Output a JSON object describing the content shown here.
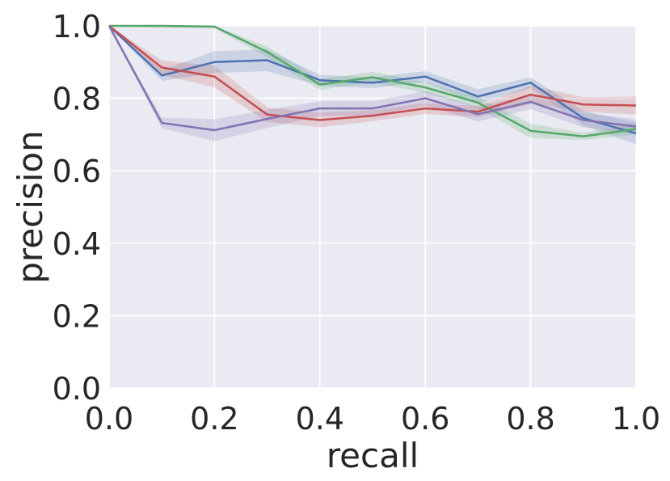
{
  "chart_data": {
    "type": "line",
    "xlabel": "recall",
    "ylabel": "precision",
    "xlim": [
      0.0,
      1.0
    ],
    "ylim": [
      0.0,
      1.0
    ],
    "x_ticks": [
      "0.0",
      "0.2",
      "0.4",
      "0.6",
      "0.8",
      "1.0"
    ],
    "y_ticks": [
      "0.0",
      "0.2",
      "0.4",
      "0.6",
      "0.8",
      "1.0"
    ],
    "grid": true,
    "background_color": "#EAEAF2",
    "x": [
      0.0,
      0.1,
      0.2,
      0.3,
      0.4,
      0.5,
      0.6,
      0.7,
      0.8,
      0.9,
      1.0
    ],
    "series": [
      {
        "color": "#4C72B0",
        "values": [
          1.0,
          0.863,
          0.9,
          0.905,
          0.85,
          0.843,
          0.86,
          0.805,
          0.843,
          0.745,
          0.703
        ],
        "band": [
          0.0,
          0.015,
          0.03,
          0.03,
          0.015,
          0.015,
          0.015,
          0.02,
          0.015,
          0.02,
          0.03
        ]
      },
      {
        "color": "#55A868",
        "values": [
          1.0,
          1.0,
          0.998,
          0.928,
          0.838,
          0.858,
          0.83,
          0.788,
          0.71,
          0.695,
          0.715
        ],
        "band": [
          0.0,
          0.005,
          0.005,
          0.015,
          0.015,
          0.015,
          0.015,
          0.015,
          0.02,
          0.01,
          0.015
        ]
      },
      {
        "color": "#C44E52",
        "values": [
          1.0,
          0.885,
          0.86,
          0.755,
          0.74,
          0.752,
          0.772,
          0.763,
          0.81,
          0.783,
          0.78
        ],
        "band": [
          0.0,
          0.02,
          0.03,
          0.02,
          0.02,
          0.015,
          0.015,
          0.015,
          0.025,
          0.02,
          0.025
        ]
      },
      {
        "color": "#8172B2",
        "values": [
          1.0,
          0.732,
          0.712,
          0.743,
          0.772,
          0.772,
          0.8,
          0.756,
          0.79,
          0.74,
          0.722
        ],
        "band": [
          0.0,
          0.015,
          0.03,
          0.025,
          0.02,
          0.02,
          0.02,
          0.02,
          0.02,
          0.02,
          0.02
        ]
      }
    ]
  }
}
